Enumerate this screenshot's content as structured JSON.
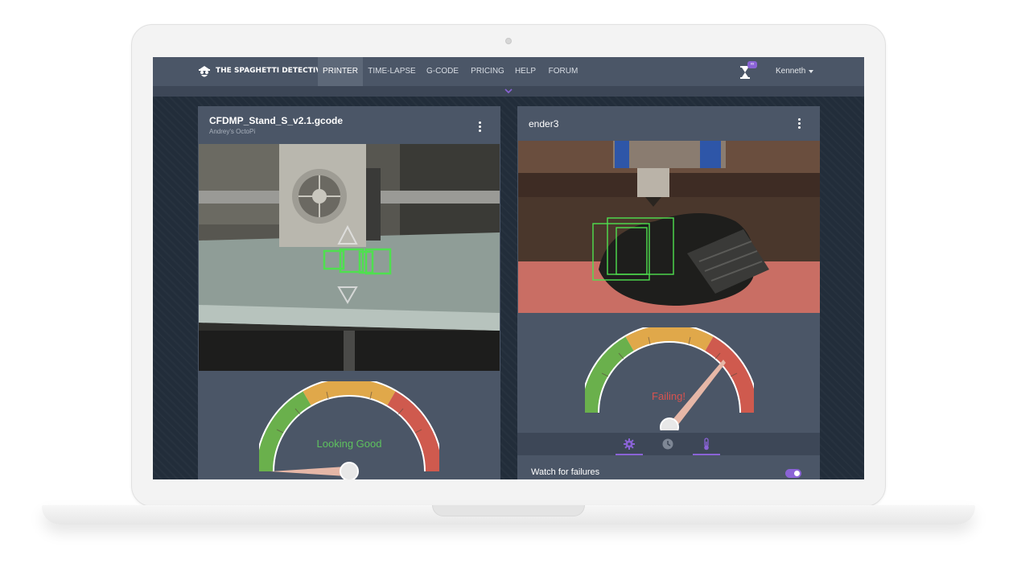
{
  "nav": {
    "brand": "THE SPAGHETTI DETECTIVE",
    "links": [
      "PRINTER",
      "TIME-LAPSE",
      "G-CODE",
      "PRICING",
      "HELP",
      "FORUM"
    ],
    "active": "PRINTER",
    "badge": "∞",
    "user": "Kenneth"
  },
  "printers": [
    {
      "title": "CFDMP_Stand_S_v2.1.gcode",
      "subtitle": "Andrey's OctoPi",
      "status": "Looking Good",
      "status_color": "#5ec25e",
      "needle_level": 0.02
    },
    {
      "title": "ender3",
      "status": "Failing!",
      "status_color": "#d9534f",
      "needle_level": 0.85
    }
  ],
  "controls": {
    "tabs": [
      "gear-icon",
      "clock-icon",
      "thermometer-icon"
    ],
    "active_tabs": [
      "gear-icon",
      "thermometer-icon"
    ],
    "watch_label": "Watch for failures",
    "watch_enabled": true
  },
  "colors": {
    "accent": "#8a63d6",
    "nav": "#4b5667",
    "gauge_green": "#6ab04c",
    "gauge_yellow": "#e0a84a",
    "gauge_red": "#cf5a4e",
    "detection_box": "#4fe04f"
  }
}
